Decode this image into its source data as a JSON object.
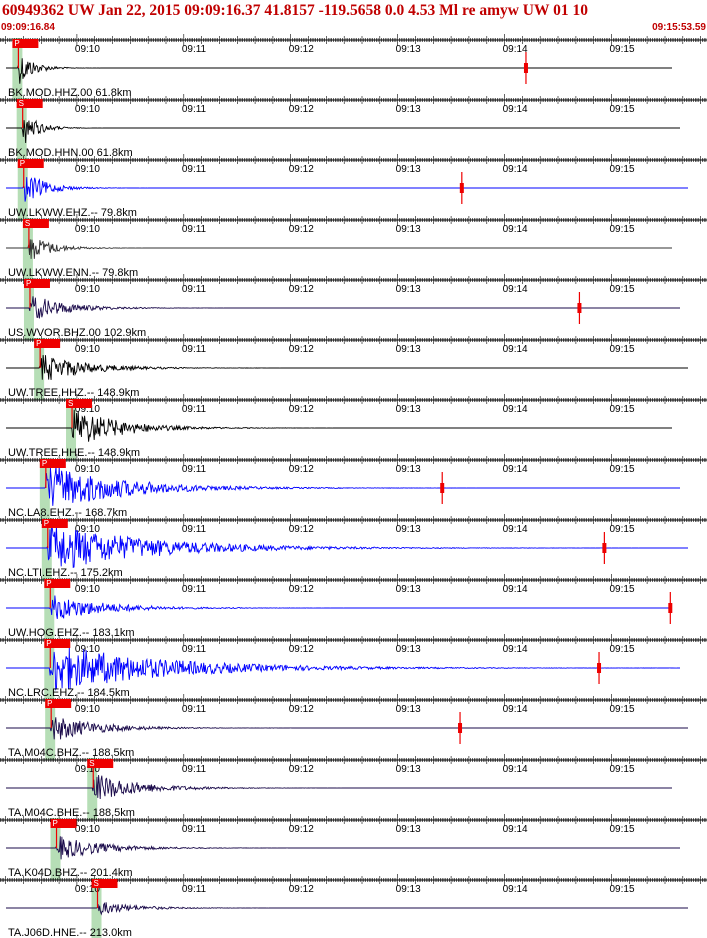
{
  "header": {
    "title": "60949362 UW Jan 22, 2015 09:09:16.37   41.8157 -119.5658  0.0 4.53 Ml re amyw UW 01  10",
    "start_time": "09:09:16.84",
    "end_time": "09:15:53.59"
  },
  "colors": {
    "header": "#c00000",
    "pick_box": "#ee0000",
    "pick_band": "#b6deb6",
    "tick": "#000000"
  },
  "chart_data": {
    "type": "seismogram-record-section",
    "time_axis": {
      "start": "09:09:16.84",
      "end": "09:15:53.59",
      "tick_labels": [
        "09:10",
        "09:11",
        "09:12",
        "09:13",
        "09:14",
        "09:15"
      ],
      "tick_times": [
        "09:10:00",
        "09:11:00",
        "09:12:00",
        "09:13:00",
        "09:14:00",
        "09:15:00"
      ]
    },
    "traces": [
      {
        "label": "BK.MOD.HHZ.00 61.8km",
        "pick": "P",
        "pick_time": "09:09:26.6",
        "color": "#000000",
        "amplitude": 0.8,
        "decay": 8,
        "marker_time": "09:14:12"
      },
      {
        "label": "BK.MOD.HHN.00 61.8km",
        "pick": "S",
        "pick_time": "09:09:29.0",
        "color": "#000000",
        "amplitude": 0.8,
        "decay": 8
      },
      {
        "label": "UW.LKWW.EHZ.-- 79.8km",
        "pick": "P",
        "pick_time": "09:09:29.6",
        "color": "#0000ff",
        "amplitude": 0.7,
        "decay": 12,
        "marker_time": "09:13:36"
      },
      {
        "label": "UW.LKWW.ENN.-- 79.8km",
        "pick": "S",
        "pick_time": "09:09:32.5",
        "color": "#303030",
        "amplitude": 0.6,
        "decay": 12
      },
      {
        "label": "US.WVOR.BHZ.00 102.9km",
        "pick": "P",
        "pick_time": "09:09:33.1",
        "color": "#1a0a4a",
        "amplitude": 0.55,
        "decay": 20,
        "marker_time": "09:14:42"
      },
      {
        "label": "UW.TREE.HHZ.-- 148.9km",
        "pick": "P",
        "pick_time": "09:09:38.8",
        "color": "#000000",
        "amplitude": 0.6,
        "decay": 25
      },
      {
        "label": "UW.TREE.HHE.-- 148.9km",
        "pick": "S",
        "pick_time": "09:09:56.7",
        "color": "#000000",
        "amplitude": 0.85,
        "decay": 25
      },
      {
        "label": "NC.LA8.EHZ.-- 168.7km",
        "pick": "P",
        "pick_time": "09:09:42.0",
        "color": "#0000ff",
        "amplitude": 1.0,
        "decay": 40,
        "marker_time": "09:13:25"
      },
      {
        "label": "NC.LTI.EHZ.-- 175.2km",
        "pick": "P",
        "pick_time": "09:09:43.1",
        "color": "#0000ff",
        "amplitude": 1.0,
        "decay": 55,
        "marker_time": "09:14:56"
      },
      {
        "label": "UW.HOG.EHZ.-- 183.1km",
        "pick": "P",
        "pick_time": "09:09:44.5",
        "color": "#0000ff",
        "amplitude": 0.55,
        "decay": 30,
        "marker_time": "09:15:33"
      },
      {
        "label": "NC.LRC.EHZ.-- 184.5km",
        "pick": "P",
        "pick_time": "09:09:44.5",
        "color": "#0000ff",
        "amplitude": 1.0,
        "decay": 60,
        "marker_time": "09:14:53"
      },
      {
        "label": "TA.M04C.BHZ.-- 188.5km",
        "pick": "P",
        "pick_time": "09:09:45.0",
        "color": "#1a0a4a",
        "amplitude": 0.55,
        "decay": 25,
        "marker_time": "09:13:35"
      },
      {
        "label": "TA.M04C.BHE.-- 188.5km",
        "pick": "S",
        "pick_time": "09:10:08.6",
        "color": "#1a0a4a",
        "amplitude": 0.6,
        "decay": 25
      },
      {
        "label": "TA.K04D.BHZ.-- 201.4km",
        "pick": "P",
        "pick_time": "09:09:48.0",
        "color": "#1a0a4a",
        "amplitude": 0.5,
        "decay": 25
      },
      {
        "label": "TA.J06D.HNE.-- 213.0km",
        "pick": "S",
        "pick_time": "09:10:11.0",
        "color": "#1a0a4a",
        "amplitude": 0.3,
        "decay": 20
      }
    ]
  }
}
